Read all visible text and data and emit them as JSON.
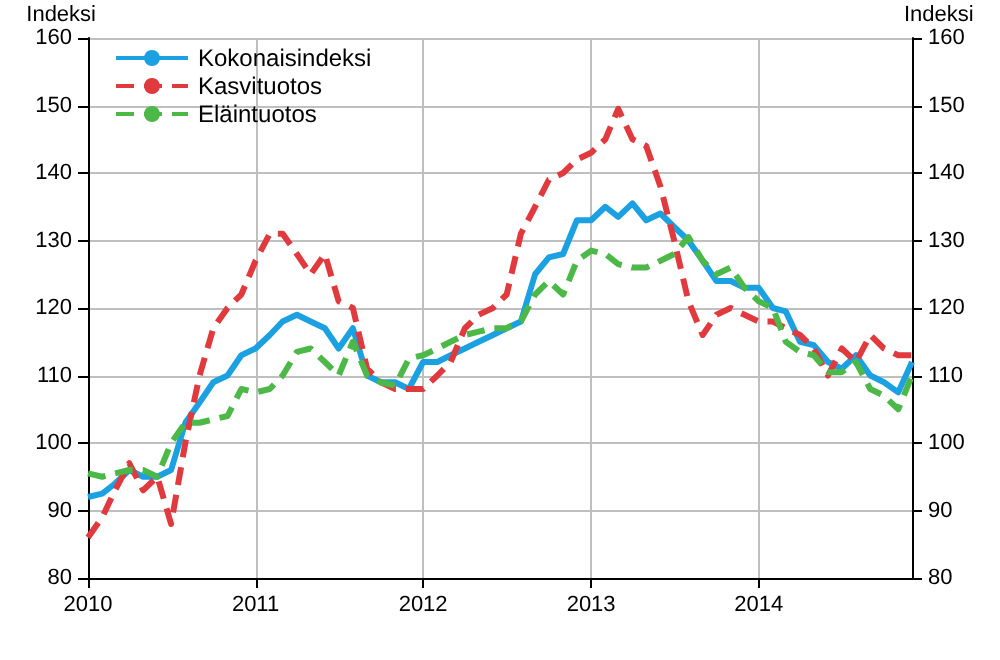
{
  "chart_data": {
    "type": "line",
    "ylabel": "Indeksi",
    "y2label": "Indeksi",
    "x": [
      "2010-01",
      "2010-02",
      "2010-03",
      "2010-04",
      "2010-05",
      "2010-06",
      "2010-07",
      "2010-08",
      "2010-09",
      "2010-10",
      "2010-11",
      "2010-12",
      "2011-01",
      "2011-02",
      "2011-03",
      "2011-04",
      "2011-05",
      "2011-06",
      "2011-07",
      "2011-08",
      "2011-09",
      "2011-10",
      "2011-11",
      "2011-12",
      "2012-01",
      "2012-02",
      "2012-03",
      "2012-04",
      "2012-05",
      "2012-06",
      "2012-07",
      "2012-08",
      "2012-09",
      "2012-10",
      "2012-11",
      "2012-12",
      "2013-01",
      "2013-02",
      "2013-03",
      "2013-04",
      "2013-05",
      "2013-06",
      "2013-07",
      "2013-08",
      "2013-09",
      "2013-10",
      "2013-11",
      "2013-12",
      "2014-01",
      "2014-02",
      "2014-03",
      "2014-04",
      "2014-05",
      "2014-06",
      "2014-07",
      "2014-08",
      "2014-09",
      "2014-10",
      "2014-11",
      "2014-12"
    ],
    "series": [
      {
        "name": "Kokonaisindeksi",
        "color": "#1ba1e2",
        "line_style": "solid",
        "values": [
          92,
          92.5,
          94,
          96,
          95,
          95,
          96,
          103,
          106,
          109,
          110,
          113,
          114,
          116,
          118,
          119,
          118,
          117,
          114,
          117,
          110,
          109,
          109,
          108,
          112,
          112,
          113,
          114,
          115,
          116,
          117,
          118,
          125,
          127.5,
          128,
          133,
          133,
          135,
          133.5,
          135.5,
          133,
          134,
          132,
          130,
          127,
          124,
          124,
          123,
          123,
          120,
          119.5,
          115,
          114.5,
          112,
          111,
          113,
          110,
          109,
          107.5,
          112
        ]
      },
      {
        "name": "Kasvituotos",
        "color": "#e03a3e",
        "line_style": "dashed",
        "values": [
          86,
          89,
          93,
          97,
          93,
          95,
          88,
          100,
          110,
          117,
          120,
          122,
          127,
          131,
          131,
          128,
          125,
          128,
          121,
          120,
          111,
          109,
          108,
          108,
          108,
          110,
          112,
          117,
          119,
          120,
          122,
          131,
          135,
          139,
          140,
          142,
          143,
          145,
          149.5,
          145,
          144,
          138,
          130,
          121,
          116,
          119,
          120,
          119,
          118,
          118,
          117,
          116,
          114,
          110,
          114,
          112,
          116,
          114,
          113,
          113
        ]
      },
      {
        "name": "Eläintuotos",
        "color": "#4cb848",
        "line_style": "dashed",
        "values": [
          95.5,
          95,
          95.5,
          96,
          96,
          95,
          100,
          103,
          103,
          103.5,
          104,
          108,
          107.5,
          108,
          110,
          113.5,
          114,
          112,
          110,
          115,
          110,
          109,
          108.5,
          112.5,
          113,
          114,
          115,
          116,
          116.5,
          117,
          117,
          118,
          122,
          124,
          122,
          127,
          128.5,
          128,
          126.5,
          126,
          126,
          127,
          128,
          130.5,
          127,
          125,
          126,
          123,
          121,
          120,
          115,
          113.5,
          113,
          110.5,
          110.5,
          112,
          108,
          107,
          105,
          110
        ]
      }
    ],
    "xlim": [
      "2010-01",
      "2014-12"
    ],
    "xticks": [
      {
        "value": "2010-01",
        "label": "2010"
      },
      {
        "value": "2011-01",
        "label": "2011"
      },
      {
        "value": "2012-01",
        "label": "2012"
      },
      {
        "value": "2013-01",
        "label": "2013"
      },
      {
        "value": "2014-01",
        "label": "2014"
      }
    ],
    "ylim": [
      80,
      160
    ],
    "yticks": [
      80,
      90,
      100,
      110,
      120,
      130,
      140,
      150,
      160
    ],
    "y2lim": [
      80,
      160
    ],
    "y2ticks": [
      80,
      90,
      100,
      110,
      120,
      130,
      140,
      150,
      160
    ],
    "grid": true,
    "legend": "top left",
    "marker": "none"
  }
}
